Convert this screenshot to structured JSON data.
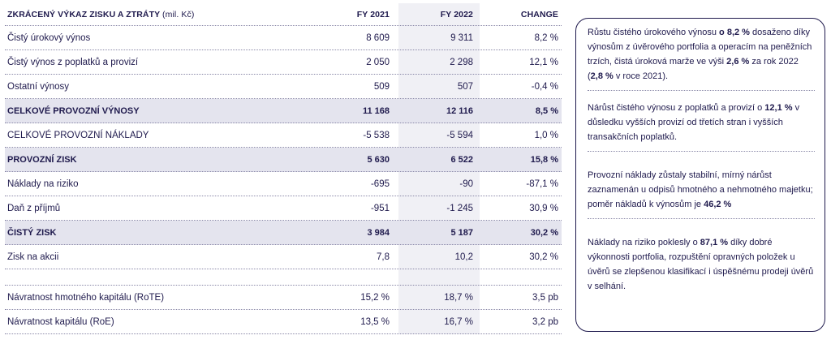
{
  "table": {
    "title": "ZKRÁCENÝ VÝKAZ ZISKU A ZTRÁTY",
    "title_unit": "(mil. Kč)",
    "col_2021": "FY 2021",
    "col_2022": "FY 2022",
    "col_change": "CHANGE",
    "rows": [
      {
        "label": "Čistý úrokový výnos",
        "fy2021": "8 609",
        "fy2022": "9 311",
        "change": "8,2 %"
      },
      {
        "label": "Čistý výnos z poplatků a provizí",
        "fy2021": "2 050",
        "fy2022": "2 298",
        "change": "12,1 %"
      },
      {
        "label": "Ostatní výnosy",
        "fy2021": "509",
        "fy2022": "507",
        "change": "-0,4 %"
      },
      {
        "label": "CELKOVÉ PROVOZNÍ VÝNOSY",
        "fy2021": "11 168",
        "fy2022": "12 116",
        "change": "8,5 %"
      },
      {
        "label": "CELKOVÉ PROVOZNÍ NÁKLADY",
        "fy2021": "-5 538",
        "fy2022": "-5 594",
        "change": "1,0 %"
      },
      {
        "label": "PROVOZNÍ ZISK",
        "fy2021": "5 630",
        "fy2022": "6 522",
        "change": "15,8 %"
      },
      {
        "label": "Náklady na riziko",
        "fy2021": "-695",
        "fy2022": "-90",
        "change": "-87,1 %"
      },
      {
        "label": "Daň z příjmů",
        "fy2021": "-951",
        "fy2022": "-1 245",
        "change": "30,9 %"
      },
      {
        "label": "ČISTÝ ZISK",
        "fy2021": "3 984",
        "fy2022": "5 187",
        "change": "30,2 %"
      },
      {
        "label": "Zisk na akcii",
        "fy2021": "7,8",
        "fy2022": "10,2",
        "change": "30,2 %"
      },
      {
        "label": "Návratnost hmotného kapitálu (RoTE)",
        "fy2021": "15,2 %",
        "fy2022": "18,7 %",
        "change": "3,5 pb"
      },
      {
        "label": "Návratnost kapitálu (RoE)",
        "fy2021": "13,5 %",
        "fy2022": "16,7 %",
        "change": "3,2 pb"
      }
    ]
  },
  "notes": [
    {
      "p1": "Růstu čistého úrokového výnosu ",
      "b1": "o 8,2 %",
      "p2": " dosaženo díky výnosům z úvěrového portfolia a operacím na peněžních trzích, čistá úroková marže ve výši ",
      "b2": "2,6 %",
      "p3": " za rok 2022 (",
      "b3": "2,8 %",
      "p4": " v roce 2021)."
    },
    {
      "p1": "Nárůst čistého výnosu z poplatků a provizí o ",
      "b1": "12,1 %",
      "p2": " v důsledku vyšších provizí od třetích stran i vyšších transakčních poplatků."
    },
    {
      "p1": "Provozní náklady zůstaly stabilní, mírný nárůst zaznamenán u odpisů hmotného a nehmotného majetku; poměr nákladů k výnosům je ",
      "b1": "46,2 %"
    },
    {
      "p1": "Náklady na riziko poklesly o ",
      "b1": "87,1 %",
      "p2": " díky dobré výkonnosti portfolia, rozpuštění opravných položek u úvěrů se zlepšenou klasifikací i úspěšnému prodeji úvěrů v selhání."
    }
  ]
}
